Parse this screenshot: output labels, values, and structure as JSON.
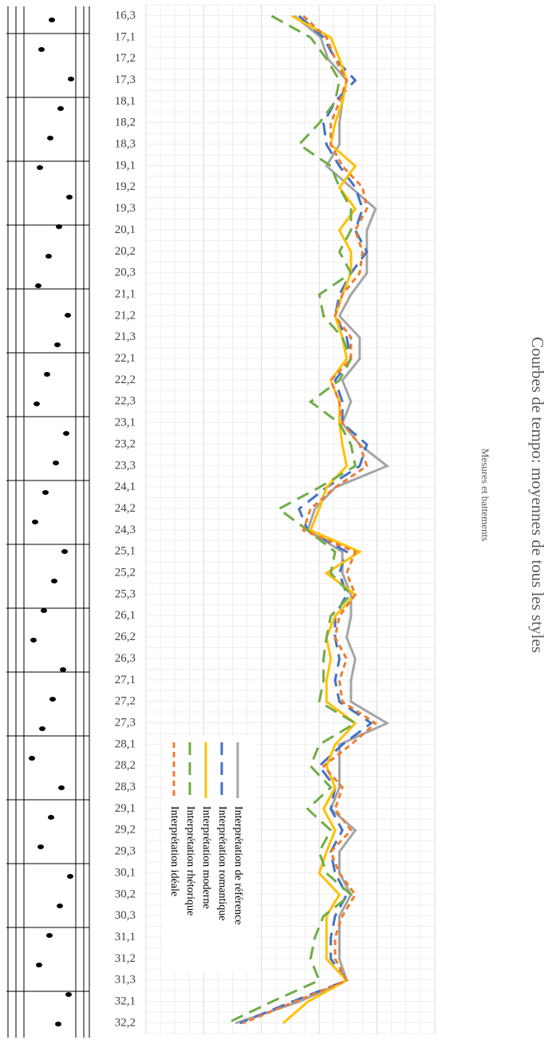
{
  "chart_data": {
    "type": "line",
    "orientation": "vertical",
    "title": "Courbes de tempo: moyennes de tous les styles",
    "subtitle": "Mesures et battements",
    "categories": [
      "16,3",
      "17,1",
      "17,2",
      "17,3",
      "18,1",
      "18,2",
      "18,3",
      "19,1",
      "19,2",
      "19,3",
      "20,1",
      "20,2",
      "20,3",
      "21,1",
      "21,2",
      "21,3",
      "22,1",
      "22,2",
      "22,3",
      "23,1",
      "23,2",
      "23,3",
      "24,1",
      "24,2",
      "24,3",
      "25,1",
      "25,2",
      "25,3",
      "26,1",
      "26,2",
      "26,3",
      "27,1",
      "27,2",
      "27,3",
      "28,1",
      "28,2",
      "28,3",
      "29,1",
      "29,2",
      "29,3",
      "30,1",
      "30,2",
      "30,3",
      "31,1",
      "31,2",
      "31,3",
      "32,1",
      "32,2"
    ],
    "ylim": [
      0,
      20
    ],
    "grid": true,
    "series": [
      {
        "name": "Interprétation de référence",
        "color": "#a5a5a5",
        "dash": "solid",
        "values": [
          10.3,
          12.1,
          12.6,
          13.9,
          13.6,
          13.4,
          13.4,
          12.5,
          14.2,
          15.9,
          15.3,
          15.3,
          15.3,
          14.2,
          13.4,
          14.8,
          14.8,
          13.6,
          14.2,
          13.6,
          14.8,
          16.7,
          13.1,
          11.7,
          11.2,
          13.6,
          13.6,
          14.2,
          14.2,
          13.9,
          14.5,
          14.2,
          14.2,
          16.7,
          13.4,
          13.4,
          13.4,
          12.8,
          14.5,
          13.4,
          13.4,
          14.2,
          13.4,
          13.4,
          13.4,
          13.9,
          10.6,
          6.2
        ]
      },
      {
        "name": "Interprétation romantique",
        "color": "#4472c4",
        "dash": "long",
        "values": [
          10.6,
          12.3,
          13.1,
          14.5,
          13.1,
          12.3,
          12.5,
          13.4,
          14.5,
          15.0,
          14.5,
          15.3,
          14.2,
          13.4,
          13.1,
          13.9,
          14.2,
          13.1,
          13.6,
          13.6,
          15.3,
          14.8,
          12.5,
          10.6,
          11.2,
          13.9,
          13.4,
          13.9,
          13.1,
          13.1,
          13.4,
          13.1,
          13.4,
          15.6,
          13.6,
          12.0,
          13.1,
          12.8,
          13.6,
          12.8,
          13.1,
          13.9,
          13.1,
          12.8,
          12.8,
          13.9,
          10.1,
          6.5
        ]
      },
      {
        "name": "Interprétation moderne",
        "color": "#ffc000",
        "dash": "solid",
        "values": [
          10.1,
          12.8,
          13.4,
          13.9,
          13.6,
          13.1,
          12.8,
          14.5,
          13.4,
          14.5,
          13.4,
          14.2,
          14.2,
          13.6,
          13.1,
          13.6,
          13.9,
          12.8,
          13.4,
          13.4,
          13.6,
          13.9,
          12.5,
          12.0,
          11.4,
          14.8,
          12.5,
          14.5,
          13.1,
          12.5,
          12.8,
          12.5,
          12.5,
          14.5,
          13.1,
          12.5,
          13.1,
          12.3,
          13.1,
          12.5,
          12.0,
          13.4,
          12.5,
          12.5,
          12.5,
          13.9,
          11.2,
          9.5
        ]
      },
      {
        "name": "Interprétation rhétorique",
        "color": "#70ad47",
        "dash": "long",
        "values": [
          8.7,
          11.4,
          12.5,
          13.4,
          13.1,
          12.0,
          10.6,
          12.8,
          13.4,
          14.2,
          14.2,
          13.4,
          14.2,
          12.0,
          12.3,
          13.6,
          14.2,
          13.4,
          11.4,
          13.4,
          14.2,
          14.5,
          12.0,
          9.2,
          11.2,
          13.1,
          12.8,
          14.2,
          12.8,
          12.5,
          12.3,
          12.3,
          12.0,
          14.5,
          12.0,
          11.4,
          12.8,
          11.2,
          12.8,
          12.0,
          12.5,
          14.2,
          12.3,
          11.7,
          11.4,
          12.0,
          8.7,
          5.6
        ]
      },
      {
        "name": "Interprétation idéale",
        "color": "#ed7d31",
        "dash": "short",
        "values": [
          10.9,
          12.5,
          13.1,
          13.9,
          13.4,
          12.8,
          12.8,
          13.6,
          15.0,
          15.3,
          14.5,
          15.0,
          14.8,
          13.6,
          13.1,
          14.2,
          14.2,
          12.8,
          13.4,
          13.6,
          14.8,
          15.3,
          13.1,
          11.4,
          10.9,
          14.5,
          13.9,
          14.5,
          13.4,
          13.1,
          13.9,
          13.4,
          13.6,
          15.9,
          14.2,
          12.3,
          13.6,
          13.1,
          14.2,
          12.8,
          13.4,
          14.5,
          13.6,
          13.1,
          13.1,
          13.9,
          10.3,
          6.7
        ]
      }
    ]
  }
}
